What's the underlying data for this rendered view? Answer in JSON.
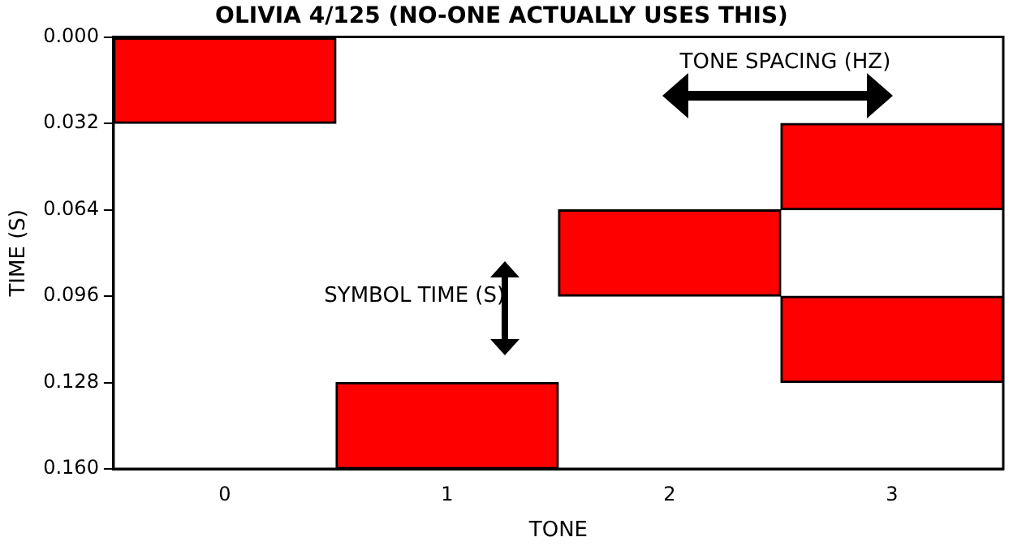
{
  "chart_data": {
    "type": "bar",
    "title": "OLIVIA 4/125 (NO-ONE ACTUALLY USES THIS)",
    "xlabel": "TONE",
    "ylabel": "TIME (S)",
    "categories": [
      "0",
      "1",
      "2",
      "3"
    ],
    "series": [
      {
        "color": "#ff0000",
        "values": [
          0.032,
          0.032,
          0.032,
          0.032
        ],
        "base": [
          0,
          0.128,
          0.064,
          0.032
        ]
      },
      {
        "color": "#ff0000",
        "values": [
          null,
          null,
          null,
          0.032
        ],
        "base": [
          null,
          null,
          null,
          0.096
        ]
      }
    ],
    "ylim": [
      0.16,
      0
    ],
    "yticks": [
      {
        "value": 0,
        "label": "0.000"
      },
      {
        "value": 0.032,
        "label": "0.032"
      },
      {
        "value": 0.064,
        "label": "0.064"
      },
      {
        "value": 0.096,
        "label": "0.096"
      },
      {
        "value": 0.128,
        "label": "0.128"
      },
      {
        "value": 0.16,
        "label": "0.160"
      }
    ],
    "annotations": [
      "TONE SPACING (HZ)",
      "SYMBOL TIME (S)"
    ],
    "grid": false,
    "legend": false
  }
}
